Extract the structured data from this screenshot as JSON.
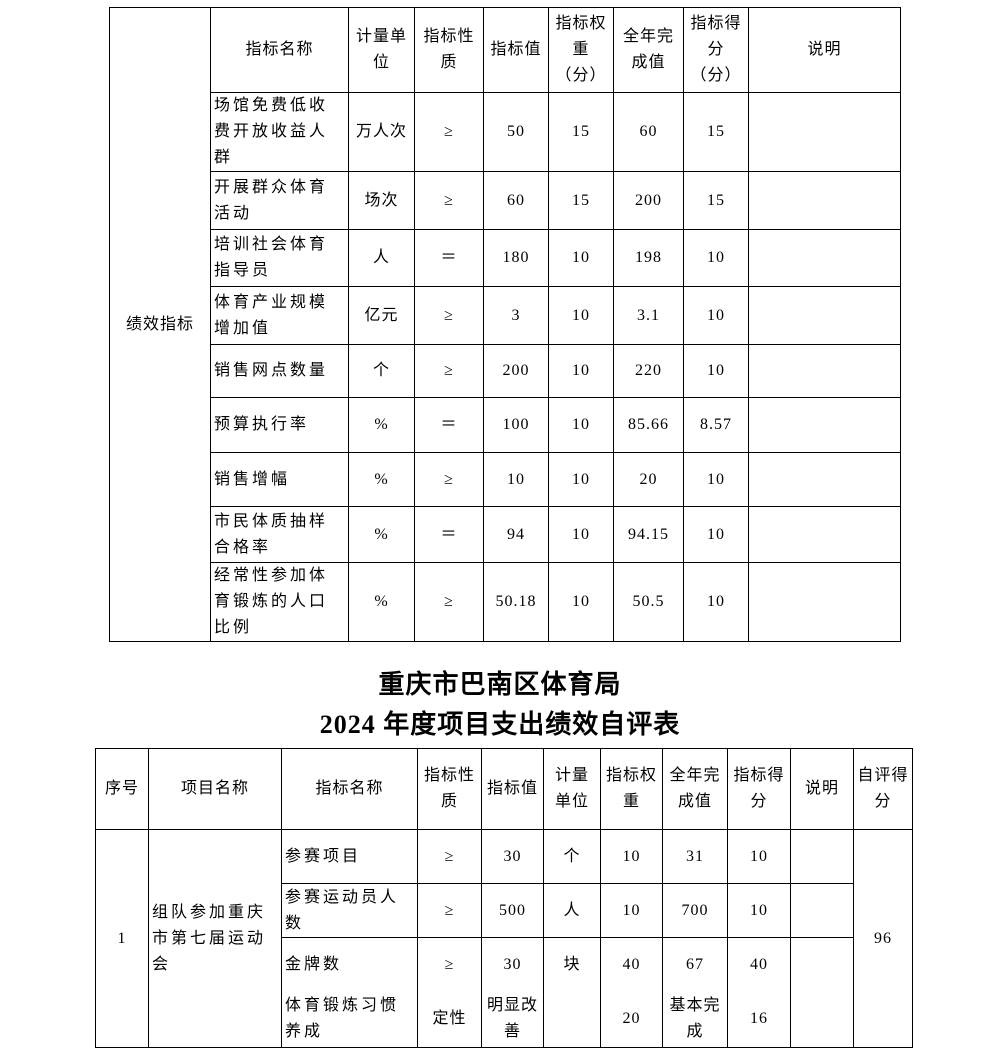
{
  "table1": {
    "category": "绩效指标",
    "headers": [
      "指标名称",
      "计量单位",
      "指标性质",
      "指标值",
      "指标权重（分）",
      "全年完成值",
      "指标得分（分）",
      "说明"
    ],
    "rows": [
      [
        "场馆免费低收费开放收益人群",
        "万人次",
        "≥",
        "50",
        "15",
        "60",
        "15",
        ""
      ],
      [
        "开展群众体育活动",
        "场次",
        "≥",
        "60",
        "15",
        "200",
        "15",
        ""
      ],
      [
        "培训社会体育指导员",
        "人",
        "＝",
        "180",
        "10",
        "198",
        "10",
        ""
      ],
      [
        "体育产业规模增加值",
        "亿元",
        "≥",
        "3",
        "10",
        "3.1",
        "10",
        ""
      ],
      [
        "销售网点数量",
        "个",
        "≥",
        "200",
        "10",
        "220",
        "10",
        ""
      ],
      [
        "预算执行率",
        "%",
        "＝",
        "100",
        "10",
        "85.66",
        "8.57",
        ""
      ],
      [
        "销售增幅",
        "%",
        "≥",
        "10",
        "10",
        "20",
        "10",
        ""
      ],
      [
        "市民体质抽样合格率",
        "%",
        "＝",
        "94",
        "10",
        "94.15",
        "10",
        ""
      ],
      [
        "经常性参加体育锻炼的人口比例",
        "%",
        "≥",
        "50.18",
        "10",
        "50.5",
        "10",
        ""
      ]
    ]
  },
  "title": {
    "line1": "重庆市巴南区体育局",
    "line2": "2024 年度项目支出绩效自评表"
  },
  "table2": {
    "headers": [
      "序号",
      "项目名称",
      "指标名称",
      "指标性质",
      "指标值",
      "计量单位",
      "指标权重",
      "全年完成值",
      "指标得分",
      "说明",
      "自评得分"
    ],
    "serial": "1",
    "project": "组队参加重庆市第七届运动会",
    "self_score": "96",
    "rows": [
      [
        "参赛项目",
        "≥",
        "30",
        "个",
        "10",
        "31",
        "10",
        ""
      ],
      [
        "参赛运动员人数",
        "≥",
        "500",
        "人",
        "10",
        "700",
        "10",
        ""
      ],
      [
        "金牌数",
        "≥",
        "30",
        "块",
        "40",
        "67",
        "40",
        ""
      ],
      [
        "体育锻炼习惯养成",
        "定性",
        "明显改善",
        "",
        "20",
        "基本完成",
        "16",
        ""
      ]
    ]
  }
}
